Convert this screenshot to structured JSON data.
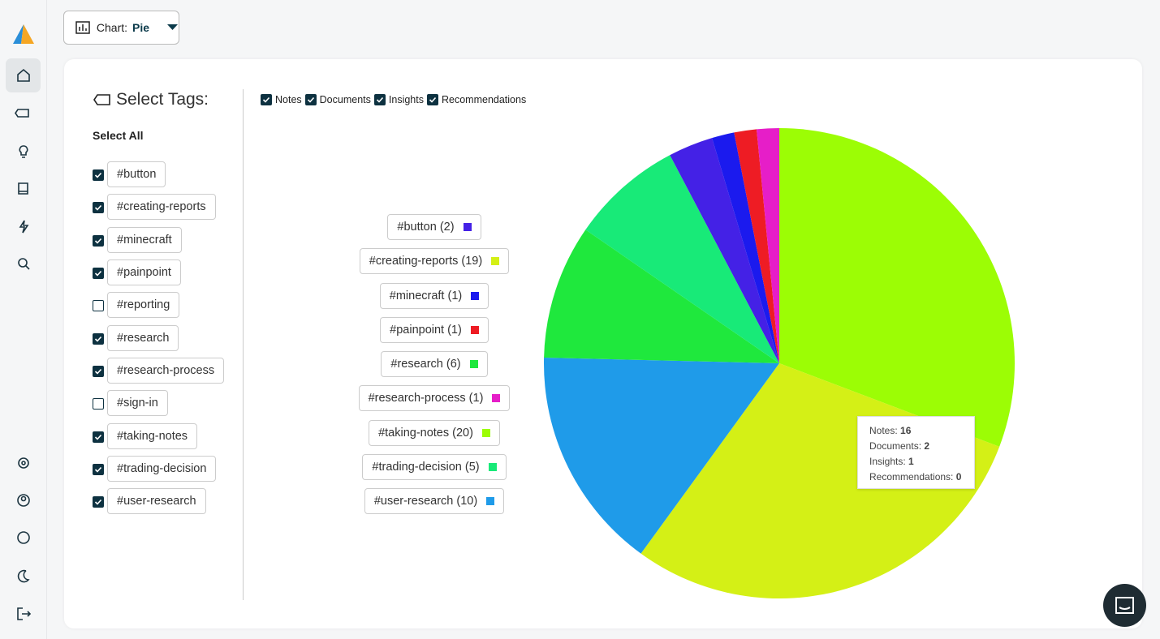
{
  "toolbar": {
    "chart_label": "Chart:",
    "chart_value": "Pie"
  },
  "tag_panel": {
    "title": "Select Tags:",
    "select_all": "Select All",
    "tags": [
      {
        "label": "#button",
        "checked": true
      },
      {
        "label": "#creating-reports",
        "checked": true
      },
      {
        "label": "#minecraft",
        "checked": true
      },
      {
        "label": "#painpoint",
        "checked": true
      },
      {
        "label": "#reporting",
        "checked": false
      },
      {
        "label": "#research",
        "checked": true
      },
      {
        "label": "#research-process",
        "checked": true
      },
      {
        "label": "#sign-in",
        "checked": false
      },
      {
        "label": "#taking-notes",
        "checked": true
      },
      {
        "label": "#trading-decision",
        "checked": true
      },
      {
        "label": "#user-research",
        "checked": true
      }
    ]
  },
  "filters": [
    {
      "label": "Notes",
      "checked": true
    },
    {
      "label": "Documents",
      "checked": true
    },
    {
      "label": "Insights",
      "checked": true
    },
    {
      "label": "Recommendations",
      "checked": true
    }
  ],
  "chart_data": {
    "type": "pie",
    "categories": [
      "#taking-notes (20)",
      "#creating-reports (19)",
      "#user-research (10)",
      "#research (6)",
      "#trading-decision (5)",
      "#button (2)",
      "#minecraft (1)",
      "#painpoint (1)",
      "#research-process (1)"
    ],
    "values": [
      20,
      19,
      10,
      6,
      5,
      2,
      1,
      1,
      1
    ],
    "colors": [
      "#9cfd05",
      "#d4f016",
      "#1f9be9",
      "#1fe83d",
      "#18ea78",
      "#4421e6",
      "#1b1aee",
      "#ee1c24",
      "#e61ec8"
    ]
  },
  "tooltip": [
    {
      "label": "Notes:",
      "value": 16
    },
    {
      "label": "Documents:",
      "value": 2
    },
    {
      "label": "Insights:",
      "value": 1
    },
    {
      "label": "Recommendations:",
      "value": 0
    }
  ]
}
